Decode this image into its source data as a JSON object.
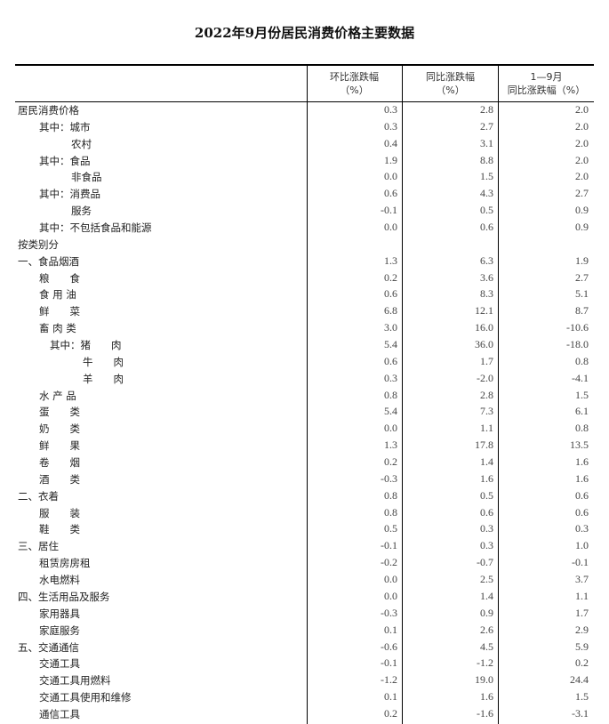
{
  "title": "2022年9月份居民消费价格主要数据",
  "headers": {
    "col1": [
      "环比涨跌幅",
      "（%）"
    ],
    "col2": [
      "同比涨跌幅",
      "（%）"
    ],
    "col3": [
      "1—9月",
      "同比涨跌幅（%）"
    ]
  },
  "rows": [
    {
      "label": "居民消费价格",
      "level": 0,
      "values": [
        "0.3",
        "2.8",
        "2.0"
      ]
    },
    {
      "label": "其中：城市",
      "level": 1,
      "values": [
        "0.3",
        "2.7",
        "2.0"
      ]
    },
    {
      "label": "农村",
      "level": 2,
      "values": [
        "0.4",
        "3.1",
        "2.0"
      ]
    },
    {
      "label": "其中：食品",
      "level": 1,
      "values": [
        "1.9",
        "8.8",
        "2.0"
      ]
    },
    {
      "label": "非食品",
      "level": 2,
      "values": [
        "0.0",
        "1.5",
        "2.0"
      ]
    },
    {
      "label": "其中：消费品",
      "level": 1,
      "values": [
        "0.6",
        "4.3",
        "2.7"
      ]
    },
    {
      "label": "服务",
      "level": 2,
      "values": [
        "-0.1",
        "0.5",
        "0.9"
      ]
    },
    {
      "label": "其中：不包括食品和能源",
      "level": 1,
      "values": [
        "0.0",
        "0.6",
        "0.9"
      ]
    },
    {
      "label": "按类别分",
      "level": 0,
      "values": [
        "",
        "",
        ""
      ]
    },
    {
      "label": "一、食品烟酒",
      "level": 0,
      "values": [
        "1.3",
        "6.3",
        "1.9"
      ]
    },
    {
      "label": "粮　　食",
      "level": 1,
      "values": [
        "0.2",
        "3.6",
        "2.7"
      ]
    },
    {
      "label": "食 用 油",
      "level": 1,
      "values": [
        "0.6",
        "8.3",
        "5.1"
      ]
    },
    {
      "label": "鲜　　菜",
      "level": 1,
      "values": [
        "6.8",
        "12.1",
        "8.7"
      ]
    },
    {
      "label": "畜 肉 类",
      "level": 1,
      "values": [
        "3.0",
        "16.0",
        "-10.6"
      ]
    },
    {
      "label": "其中：猪　　肉",
      "level": 3,
      "values": [
        "5.4",
        "36.0",
        "-18.0"
      ]
    },
    {
      "label": "牛　　肉",
      "level": 4,
      "values": [
        "0.6",
        "1.7",
        "0.8"
      ]
    },
    {
      "label": "羊　　肉",
      "level": 4,
      "values": [
        "0.3",
        "-2.0",
        "-4.1"
      ]
    },
    {
      "label": "水 产 品",
      "level": 1,
      "values": [
        "0.8",
        "2.8",
        "1.5"
      ]
    },
    {
      "label": "蛋　　类",
      "level": 1,
      "values": [
        "5.4",
        "7.3",
        "6.1"
      ]
    },
    {
      "label": "奶　　类",
      "level": 1,
      "values": [
        "0.0",
        "1.1",
        "0.8"
      ]
    },
    {
      "label": "鲜　　果",
      "level": 1,
      "values": [
        "1.3",
        "17.8",
        "13.5"
      ]
    },
    {
      "label": "卷　　烟",
      "level": 1,
      "values": [
        "0.2",
        "1.4",
        "1.6"
      ]
    },
    {
      "label": "酒　　类",
      "level": 1,
      "values": [
        "-0.3",
        "1.6",
        "1.6"
      ]
    },
    {
      "label": "二、衣着",
      "level": 0,
      "values": [
        "0.8",
        "0.5",
        "0.6"
      ]
    },
    {
      "label": "服　　装",
      "level": 1,
      "values": [
        "0.8",
        "0.6",
        "0.6"
      ]
    },
    {
      "label": "鞋　　类",
      "level": 1,
      "values": [
        "0.5",
        "0.3",
        "0.3"
      ]
    },
    {
      "label": "三、居住",
      "level": 0,
      "values": [
        "-0.1",
        "0.3",
        "1.0"
      ]
    },
    {
      "label": "租赁房房租",
      "level": 1,
      "values": [
        "-0.2",
        "-0.7",
        "-0.1"
      ]
    },
    {
      "label": "水电燃料",
      "level": 1,
      "values": [
        "0.0",
        "2.5",
        "3.7"
      ]
    },
    {
      "label": "四、生活用品及服务",
      "level": 0,
      "values": [
        "0.0",
        "1.4",
        "1.1"
      ]
    },
    {
      "label": "家用器具",
      "level": 1,
      "values": [
        "-0.3",
        "0.9",
        "1.7"
      ]
    },
    {
      "label": "家庭服务",
      "level": 1,
      "values": [
        "0.1",
        "2.6",
        "2.9"
      ]
    },
    {
      "label": "五、交通通信",
      "level": 0,
      "values": [
        "-0.6",
        "4.5",
        "5.9"
      ]
    },
    {
      "label": "交通工具",
      "level": 1,
      "values": [
        "-0.1",
        "-1.2",
        "0.2"
      ]
    },
    {
      "label": "交通工具用燃料",
      "level": 1,
      "values": [
        "-1.2",
        "19.0",
        "24.4"
      ]
    },
    {
      "label": "交通工具使用和维修",
      "level": 1,
      "values": [
        "0.1",
        "1.6",
        "1.5"
      ]
    },
    {
      "label": "通信工具",
      "level": 1,
      "values": [
        "0.2",
        "-1.6",
        "-3.1"
      ]
    }
  ]
}
